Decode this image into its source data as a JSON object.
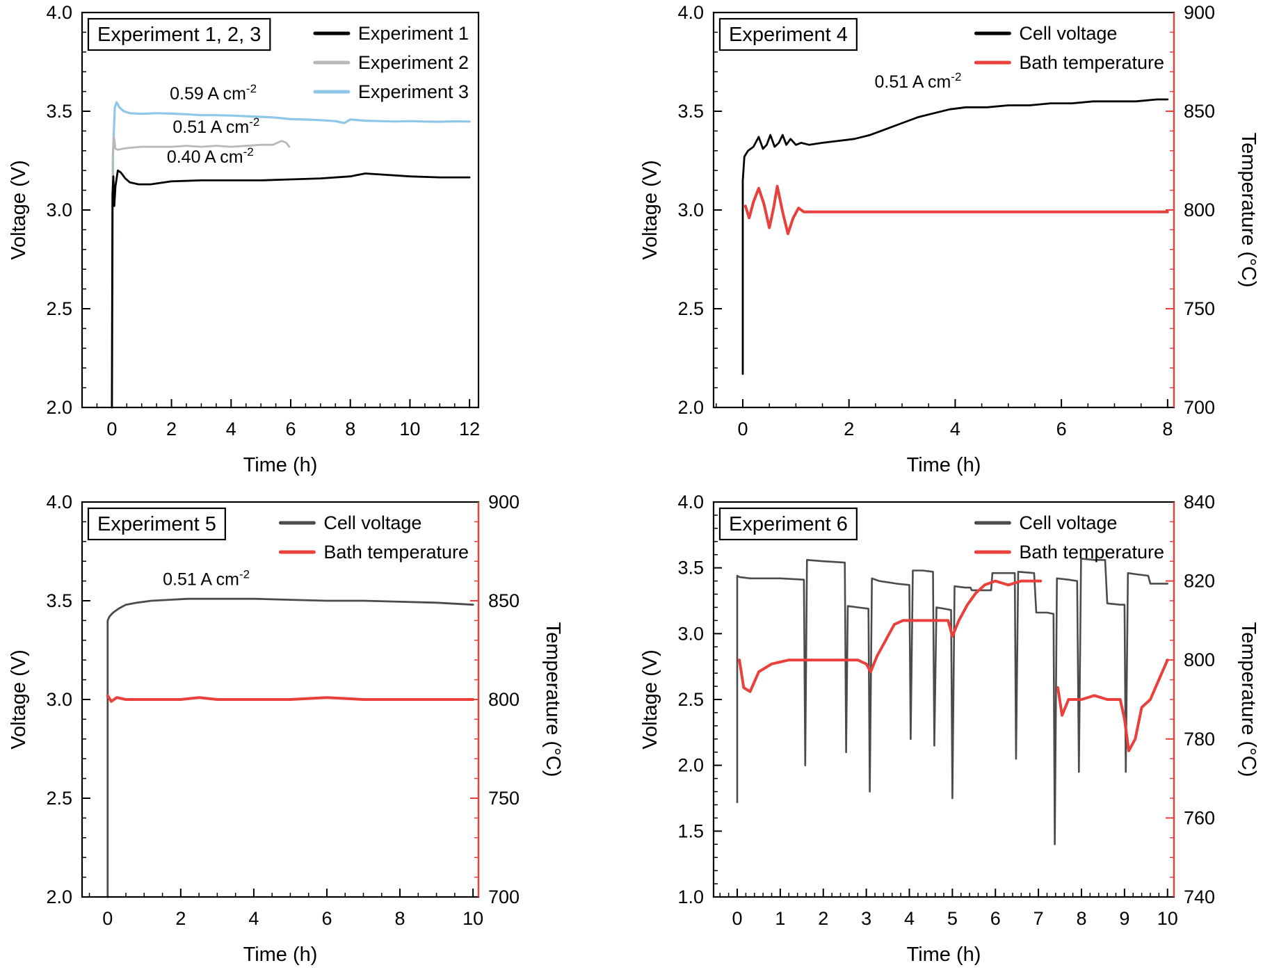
{
  "page": {
    "background": "#ffffff"
  },
  "style": {
    "frame_color": "#000000",
    "frame_width": 2.2,
    "red": "#e9403b",
    "tick_font": 27,
    "label_font": 29,
    "legend_font": 27,
    "annotation_font": 25
  },
  "chart_data": [
    {
      "id": "experiment-1-2-3",
      "type": "line",
      "panel_label": "Experiment 1, 2, 3",
      "xlabel": "Time (h)",
      "ylabel": "Voltage (V)",
      "xlim": [
        -1.0,
        12.3
      ],
      "xticks": [
        0,
        2,
        4,
        6,
        8,
        10,
        12
      ],
      "x_decimals": 0,
      "x_minor_div": 4,
      "ylim_left": [
        2.0,
        4.0
      ],
      "yticks_left": [
        2.0,
        2.5,
        3.0,
        3.5,
        4.0
      ],
      "y_left_decimals": 1,
      "y_left_minor_div": 5,
      "right_axis": null,
      "legend": [
        {
          "label": "Experiment 1",
          "color": "#000000"
        },
        {
          "label": "Experiment 2",
          "color": "#b8b8b8"
        },
        {
          "label": "Experiment 3",
          "color": "#8fc7e8"
        }
      ],
      "annotations": [
        {
          "text": "0.59 A cm",
          "sup": "-2",
          "x": 3.4,
          "y": 3.56
        },
        {
          "text": "0.51 A cm",
          "sup": "-2",
          "x": 3.5,
          "y": 3.39
        },
        {
          "text": "0.40 A cm",
          "sup": "-2",
          "x": 3.3,
          "y": 3.24
        }
      ],
      "series": [
        {
          "name": "Experiment 3",
          "color": "#8fc7e8",
          "axis": "left",
          "width": 3.2,
          "x": [
            0.0,
            0.04,
            0.1,
            0.16,
            0.25,
            0.4,
            0.6,
            1.0,
            1.5,
            2.0,
            2.5,
            3.0,
            3.5,
            4.0,
            4.5,
            5.0,
            5.5,
            6.0,
            6.5,
            7.0,
            7.5,
            7.8,
            8.0,
            8.5,
            9.0,
            9.5,
            10.0,
            10.5,
            11.0,
            11.5,
            12.0
          ],
          "y": [
            2.0,
            3.3,
            3.52,
            3.545,
            3.52,
            3.5,
            3.49,
            3.487,
            3.49,
            3.488,
            3.485,
            3.48,
            3.48,
            3.478,
            3.475,
            3.472,
            3.468,
            3.46,
            3.458,
            3.455,
            3.45,
            3.44,
            3.458,
            3.452,
            3.45,
            3.448,
            3.45,
            3.448,
            3.447,
            3.449,
            3.448
          ]
        },
        {
          "name": "Experiment 2",
          "color": "#b8b8b8",
          "axis": "left",
          "width": 2.8,
          "x": [
            0.0,
            0.03,
            0.07,
            0.12,
            0.2,
            0.35,
            0.6,
            1.0,
            1.5,
            2.0,
            2.5,
            3.0,
            3.5,
            4.0,
            4.5,
            5.0,
            5.4,
            5.7,
            5.85,
            5.95
          ],
          "y": [
            2.0,
            3.28,
            3.37,
            3.31,
            3.305,
            3.31,
            3.315,
            3.32,
            3.32,
            3.32,
            3.325,
            3.32,
            3.325,
            3.32,
            3.325,
            3.33,
            3.33,
            3.35,
            3.34,
            3.32
          ]
        },
        {
          "name": "Experiment 1",
          "color": "#000000",
          "axis": "left",
          "width": 2.8,
          "x": [
            0.0,
            0.02,
            0.05,
            0.08,
            0.12,
            0.2,
            0.3,
            0.45,
            0.6,
            0.9,
            1.3,
            2,
            3,
            4,
            5,
            6,
            7,
            8,
            8.5,
            9,
            10,
            11,
            12
          ],
          "y": [
            2.0,
            3.08,
            3.17,
            3.02,
            3.12,
            3.2,
            3.19,
            3.16,
            3.14,
            3.13,
            3.13,
            3.145,
            3.15,
            3.15,
            3.15,
            3.155,
            3.16,
            3.17,
            3.185,
            3.18,
            3.17,
            3.165,
            3.165
          ]
        }
      ]
    },
    {
      "id": "experiment-4",
      "type": "line",
      "panel_label": "Experiment 4",
      "xlabel": "Time (h)",
      "ylabel": "Voltage (V)",
      "xlim": [
        -0.55,
        8.12
      ],
      "xticks": [
        0,
        2,
        4,
        6,
        8
      ],
      "x_decimals": 0,
      "x_minor_div": 4,
      "ylim_left": [
        2.0,
        4.0
      ],
      "yticks_left": [
        2.0,
        2.5,
        3.0,
        3.5,
        4.0
      ],
      "y_left_decimals": 1,
      "y_left_minor_div": 5,
      "right_axis": {
        "label": "Temperature (°C)",
        "lim": [
          700,
          900
        ],
        "ticks": [
          700,
          750,
          800,
          850,
          900
        ],
        "decimals": 0,
        "minor_div": 5,
        "color": "#e9403b"
      },
      "legend": [
        {
          "label": "Cell voltage",
          "color": "#000000"
        },
        {
          "label": "Bath temperature",
          "color": "#e9403b"
        }
      ],
      "annotations": [
        {
          "text": "0.51 A cm",
          "sup": "-2",
          "x": 3.3,
          "y": 3.62
        }
      ],
      "series": [
        {
          "name": "Cell voltage",
          "color": "#000000",
          "axis": "left",
          "width": 2.8,
          "x": [
            0.0,
            0.0,
            0.03,
            0.1,
            0.2,
            0.3,
            0.38,
            0.45,
            0.52,
            0.6,
            0.68,
            0.75,
            0.82,
            0.9,
            1.0,
            1.1,
            1.25,
            1.5,
            1.8,
            2.1,
            2.4,
            2.7,
            3.0,
            3.3,
            3.6,
            3.9,
            4.2,
            4.6,
            5.0,
            5.4,
            5.8,
            6.2,
            6.6,
            7.0,
            7.4,
            7.8,
            8.0
          ],
          "y": [
            2.17,
            3.15,
            3.27,
            3.3,
            3.32,
            3.37,
            3.31,
            3.33,
            3.38,
            3.32,
            3.34,
            3.38,
            3.33,
            3.36,
            3.33,
            3.34,
            3.33,
            3.34,
            3.35,
            3.36,
            3.38,
            3.41,
            3.44,
            3.47,
            3.49,
            3.51,
            3.52,
            3.52,
            3.53,
            3.53,
            3.54,
            3.54,
            3.55,
            3.55,
            3.55,
            3.56,
            3.56
          ]
        },
        {
          "name": "Bath temperature",
          "color": "#e9403b",
          "axis": "right",
          "width": 4.0,
          "x": [
            0.05,
            0.12,
            0.2,
            0.3,
            0.4,
            0.5,
            0.58,
            0.65,
            0.75,
            0.85,
            0.95,
            1.05,
            1.15,
            1.3,
            1.6,
            2.0,
            2.5,
            3.0,
            3.5,
            4.0,
            4.5,
            5.0,
            5.5,
            6.0,
            6.5,
            7.0,
            7.5,
            8.0
          ],
          "y": [
            802,
            796,
            804,
            811,
            803,
            791,
            801,
            812,
            799,
            788,
            796,
            801,
            799,
            799,
            799,
            799,
            799,
            799,
            799,
            799,
            799,
            799,
            799,
            799,
            799,
            799,
            799,
            799
          ]
        }
      ]
    },
    {
      "id": "experiment-5",
      "type": "line",
      "panel_label": "Experiment 5",
      "xlabel": "Time (h)",
      "ylabel": "Voltage (V)",
      "xlim": [
        -0.7,
        10.15
      ],
      "xticks": [
        0,
        2,
        4,
        6,
        8,
        10
      ],
      "x_decimals": 0,
      "x_minor_div": 4,
      "ylim_left": [
        2.0,
        4.0
      ],
      "yticks_left": [
        2.0,
        2.5,
        3.0,
        3.5,
        4.0
      ],
      "y_left_decimals": 1,
      "y_left_minor_div": 5,
      "right_axis": {
        "label": "Temperature (°C)",
        "lim": [
          700,
          900
        ],
        "ticks": [
          700,
          750,
          800,
          850,
          900
        ],
        "decimals": 0,
        "minor_div": 5,
        "color": "#e9403b"
      },
      "legend": [
        {
          "label": "Cell voltage",
          "color": "#4b4b4b"
        },
        {
          "label": "Bath temperature",
          "color": "#e9403b"
        }
      ],
      "annotations": [
        {
          "text": "0.51 A cm",
          "sup": "-2",
          "x": 2.7,
          "y": 3.58
        }
      ],
      "series": [
        {
          "name": "Cell voltage",
          "color": "#4b4b4b",
          "axis": "left",
          "width": 2.8,
          "x": [
            0.0,
            0.0,
            0.05,
            0.15,
            0.3,
            0.5,
            0.8,
            1.2,
            1.7,
            2.2,
            3.0,
            4.0,
            5.0,
            6.0,
            7.0,
            8.0,
            9.0,
            10.0
          ],
          "y": [
            2.0,
            3.4,
            3.42,
            3.44,
            3.46,
            3.48,
            3.49,
            3.5,
            3.505,
            3.51,
            3.51,
            3.51,
            3.505,
            3.5,
            3.5,
            3.495,
            3.49,
            3.48
          ]
        },
        {
          "name": "Bath temperature",
          "color": "#e9403b",
          "axis": "right",
          "width": 4.0,
          "x": [
            0.0,
            0.1,
            0.25,
            0.5,
            1.0,
            1.5,
            2.0,
            2.5,
            3.0,
            4.0,
            5.0,
            6.0,
            7.0,
            8.0,
            9.0,
            10.0
          ],
          "y": [
            802,
            799,
            801,
            800,
            800,
            800,
            800,
            801,
            800,
            800,
            800,
            801,
            800,
            800,
            800,
            800
          ]
        }
      ]
    },
    {
      "id": "experiment-6",
      "type": "line",
      "panel_label": "Experiment 6",
      "xlabel": "Time (h)",
      "ylabel": "Voltage (V)",
      "xlim": [
        -0.55,
        10.15
      ],
      "xticks": [
        0,
        1,
        2,
        3,
        4,
        5,
        6,
        7,
        8,
        9,
        10
      ],
      "x_decimals": 0,
      "x_minor_div": 5,
      "ylim_left": [
        1.0,
        4.0
      ],
      "yticks_left": [
        1.0,
        1.5,
        2.0,
        2.5,
        3.0,
        3.5,
        4.0
      ],
      "y_left_decimals": 1,
      "y_left_minor_div": 5,
      "right_axis": {
        "label": "Temperature (°C)",
        "lim": [
          740,
          840
        ],
        "ticks": [
          740,
          760,
          780,
          800,
          820,
          840
        ],
        "decimals": 0,
        "minor_div": 4,
        "color": "#e9403b"
      },
      "legend": [
        {
          "label": "Cell voltage",
          "color": "#4b4b4b"
        },
        {
          "label": "Bath temperature",
          "color": "#e9403b"
        }
      ],
      "annotations": [],
      "series": [
        {
          "name": "Cell voltage",
          "color": "#4b4b4b",
          "axis": "left",
          "width": 2.6,
          "x": [
            0.0,
            0.0,
            0.05,
            0.3,
            1.0,
            1.55,
            1.58,
            1.62,
            2.0,
            2.5,
            2.53,
            2.57,
            2.8,
            3.05,
            3.08,
            3.13,
            3.3,
            3.7,
            4.0,
            4.03,
            4.08,
            4.3,
            4.55,
            4.58,
            4.63,
            4.8,
            4.97,
            5.0,
            5.05,
            5.3,
            5.42,
            5.45,
            5.9,
            5.93,
            6.2,
            6.45,
            6.48,
            6.53,
            6.9,
            6.95,
            7.2,
            7.35,
            7.38,
            7.43,
            7.7,
            7.9,
            7.94,
            7.99,
            8.3,
            8.55,
            8.6,
            8.9,
            9.0,
            9.03,
            9.08,
            9.3,
            9.55,
            9.6,
            9.8,
            10.0
          ],
          "y": [
            1.72,
            3.44,
            3.43,
            3.42,
            3.42,
            3.41,
            2.0,
            3.56,
            3.55,
            3.54,
            2.1,
            3.21,
            3.2,
            3.19,
            1.8,
            3.42,
            3.4,
            3.38,
            3.37,
            2.2,
            3.48,
            3.48,
            3.47,
            2.15,
            3.2,
            3.19,
            3.18,
            1.75,
            3.36,
            3.35,
            3.35,
            3.33,
            3.33,
            3.46,
            3.46,
            3.46,
            2.05,
            3.47,
            3.46,
            3.16,
            3.16,
            3.15,
            1.4,
            3.42,
            3.41,
            3.4,
            1.95,
            3.57,
            3.56,
            3.56,
            3.23,
            3.22,
            3.22,
            1.95,
            3.46,
            3.45,
            3.44,
            3.38,
            3.38,
            3.38
          ]
        },
        {
          "name": "Bath temperature",
          "color": "#e9403b",
          "axis": "right",
          "width": 4.0,
          "x": [
            0.05,
            0.15,
            0.3,
            0.5,
            0.8,
            1.2,
            1.6,
            2.0,
            2.4,
            2.8,
            3.0,
            3.1,
            3.25,
            3.45,
            3.65,
            3.85,
            4.2,
            4.6,
            4.9,
            5.0,
            5.15,
            5.35,
            5.55,
            5.75,
            6.0,
            6.3,
            6.6,
            6.9,
            7.05,
            7.2,
            7.45,
            7.55,
            7.7,
            8.0,
            8.3,
            8.6,
            8.9,
            9.0,
            9.1,
            9.25,
            9.4,
            9.6,
            9.8,
            10.0
          ],
          "y": [
            800,
            793,
            792,
            797,
            799,
            800,
            800,
            800,
            800,
            800,
            799,
            797,
            801,
            805,
            809,
            810,
            810,
            810,
            810,
            806,
            810,
            814,
            817,
            819,
            820,
            819,
            820,
            820,
            820,
            null,
            793,
            786,
            790,
            790,
            791,
            790,
            790,
            785,
            777,
            780,
            788,
            790,
            795,
            800
          ]
        }
      ]
    }
  ]
}
